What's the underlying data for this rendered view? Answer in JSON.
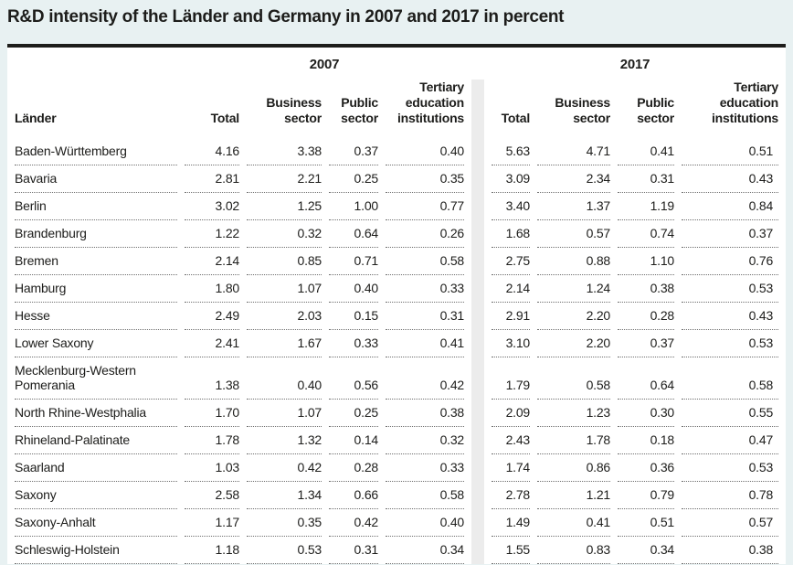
{
  "title": "R&D intensity of the Länder and Germany in 2007 and 2017 in percent",
  "table": {
    "group_headers": [
      "2007",
      "2017"
    ],
    "row_header_label": "Länder",
    "sub_headers": [
      "Total",
      "Business sector",
      "Public sector",
      "Tertiary education institutions"
    ],
    "rows": [
      {
        "land": "Baden-Württemberg",
        "y2007": [
          "4.16",
          "3.38",
          "0.37",
          "0.40"
        ],
        "y2017": [
          "5.63",
          "4.71",
          "0.41",
          "0.51"
        ]
      },
      {
        "land": "Bavaria",
        "y2007": [
          "2.81",
          "2.21",
          "0.25",
          "0.35"
        ],
        "y2017": [
          "3.09",
          "2.34",
          "0.31",
          "0.43"
        ]
      },
      {
        "land": "Berlin",
        "y2007": [
          "3.02",
          "1.25",
          "1.00",
          "0.77"
        ],
        "y2017": [
          "3.40",
          "1.37",
          "1.19",
          "0.84"
        ]
      },
      {
        "land": "Brandenburg",
        "y2007": [
          "1.22",
          "0.32",
          "0.64",
          "0.26"
        ],
        "y2017": [
          "1.68",
          "0.57",
          "0.74",
          "0.37"
        ]
      },
      {
        "land": "Bremen",
        "y2007": [
          "2.14",
          "0.85",
          "0.71",
          "0.58"
        ],
        "y2017": [
          "2.75",
          "0.88",
          "1.10",
          "0.76"
        ]
      },
      {
        "land": "Hamburg",
        "y2007": [
          "1.80",
          "1.07",
          "0.40",
          "0.33"
        ],
        "y2017": [
          "2.14",
          "1.24",
          "0.38",
          "0.53"
        ]
      },
      {
        "land": "Hesse",
        "y2007": [
          "2.49",
          "2.03",
          "0.15",
          "0.31"
        ],
        "y2017": [
          "2.91",
          "2.20",
          "0.28",
          "0.43"
        ]
      },
      {
        "land": "Lower Saxony",
        "y2007": [
          "2.41",
          "1.67",
          "0.33",
          "0.41"
        ],
        "y2017": [
          "3.10",
          "2.20",
          "0.37",
          "0.53"
        ]
      },
      {
        "land": "Mecklenburg-Western Pomerania",
        "y2007": [
          "1.38",
          "0.40",
          "0.56",
          "0.42"
        ],
        "y2017": [
          "1.79",
          "0.58",
          "0.64",
          "0.58"
        ]
      },
      {
        "land": "North Rhine-Westphalia",
        "y2007": [
          "1.70",
          "1.07",
          "0.25",
          "0.38"
        ],
        "y2017": [
          "2.09",
          "1.23",
          "0.30",
          "0.55"
        ]
      },
      {
        "land": "Rhineland-Palatinate",
        "y2007": [
          "1.78",
          "1.32",
          "0.14",
          "0.32"
        ],
        "y2017": [
          "2.43",
          "1.78",
          "0.18",
          "0.47"
        ]
      },
      {
        "land": "Saarland",
        "y2007": [
          "1.03",
          "0.42",
          "0.28",
          "0.33"
        ],
        "y2017": [
          "1.74",
          "0.86",
          "0.36",
          "0.53"
        ]
      },
      {
        "land": "Saxony",
        "y2007": [
          "2.58",
          "1.34",
          "0.66",
          "0.58"
        ],
        "y2017": [
          "2.78",
          "1.21",
          "0.79",
          "0.78"
        ]
      },
      {
        "land": "Saxony-Anhalt",
        "y2007": [
          "1.17",
          "0.35",
          "0.42",
          "0.40"
        ],
        "y2017": [
          "1.49",
          "0.41",
          "0.51",
          "0.57"
        ]
      },
      {
        "land": "Schleswig-Holstein",
        "y2007": [
          "1.18",
          "0.53",
          "0.31",
          "0.34"
        ],
        "y2017": [
          "1.55",
          "0.83",
          "0.34",
          "0.38"
        ]
      }
    ]
  },
  "colors": {
    "page_background": "#e8f1f2",
    "card_background": "#ffffff",
    "text": "#1d1d1b",
    "top_rule": "#1d1d1b",
    "dotted_separator": "#6f6f6f",
    "year_divider_bar": "#ececec"
  },
  "chart_data": {
    "type": "table",
    "title": "R&D intensity of the Länder and Germany in 2007 and 2017 in percent",
    "unit": "percent",
    "column_groups": [
      "2007",
      "2017"
    ],
    "columns_per_group": [
      "Total",
      "Business sector",
      "Public sector",
      "Tertiary education institutions"
    ],
    "row_label_header": "Länder",
    "rows": [
      {
        "land": "Baden-Württemberg",
        "2007": [
          4.16,
          3.38,
          0.37,
          0.4
        ],
        "2017": [
          5.63,
          4.71,
          0.41,
          0.51
        ]
      },
      {
        "land": "Bavaria",
        "2007": [
          2.81,
          2.21,
          0.25,
          0.35
        ],
        "2017": [
          3.09,
          2.34,
          0.31,
          0.43
        ]
      },
      {
        "land": "Berlin",
        "2007": [
          3.02,
          1.25,
          1.0,
          0.77
        ],
        "2017": [
          3.4,
          1.37,
          1.19,
          0.84
        ]
      },
      {
        "land": "Brandenburg",
        "2007": [
          1.22,
          0.32,
          0.64,
          0.26
        ],
        "2017": [
          1.68,
          0.57,
          0.74,
          0.37
        ]
      },
      {
        "land": "Bremen",
        "2007": [
          2.14,
          0.85,
          0.71,
          0.58
        ],
        "2017": [
          2.75,
          0.88,
          1.1,
          0.76
        ]
      },
      {
        "land": "Hamburg",
        "2007": [
          1.8,
          1.07,
          0.4,
          0.33
        ],
        "2017": [
          2.14,
          1.24,
          0.38,
          0.53
        ]
      },
      {
        "land": "Hesse",
        "2007": [
          2.49,
          2.03,
          0.15,
          0.31
        ],
        "2017": [
          2.91,
          2.2,
          0.28,
          0.43
        ]
      },
      {
        "land": "Lower Saxony",
        "2007": [
          2.41,
          1.67,
          0.33,
          0.41
        ],
        "2017": [
          3.1,
          2.2,
          0.37,
          0.53
        ]
      },
      {
        "land": "Mecklenburg-Western Pomerania",
        "2007": [
          1.38,
          0.4,
          0.56,
          0.42
        ],
        "2017": [
          1.79,
          0.58,
          0.64,
          0.58
        ]
      },
      {
        "land": "North Rhine-Westphalia",
        "2007": [
          1.7,
          1.07,
          0.25,
          0.38
        ],
        "2017": [
          2.09,
          1.23,
          0.3,
          0.55
        ]
      },
      {
        "land": "Rhineland-Palatinate",
        "2007": [
          1.78,
          1.32,
          0.14,
          0.32
        ],
        "2017": [
          2.43,
          1.78,
          0.18,
          0.47
        ]
      },
      {
        "land": "Saarland",
        "2007": [
          1.03,
          0.42,
          0.28,
          0.33
        ],
        "2017": [
          1.74,
          0.86,
          0.36,
          0.53
        ]
      },
      {
        "land": "Saxony",
        "2007": [
          2.58,
          1.34,
          0.66,
          0.58
        ],
        "2017": [
          2.78,
          1.21,
          0.79,
          0.78
        ]
      },
      {
        "land": "Saxony-Anhalt",
        "2007": [
          1.17,
          0.35,
          0.42,
          0.4
        ],
        "2017": [
          1.49,
          0.41,
          0.51,
          0.57
        ]
      },
      {
        "land": "Schleswig-Holstein",
        "2007": [
          1.18,
          0.53,
          0.31,
          0.34
        ],
        "2017": [
          1.55,
          0.83,
          0.34,
          0.38
        ]
      }
    ]
  }
}
